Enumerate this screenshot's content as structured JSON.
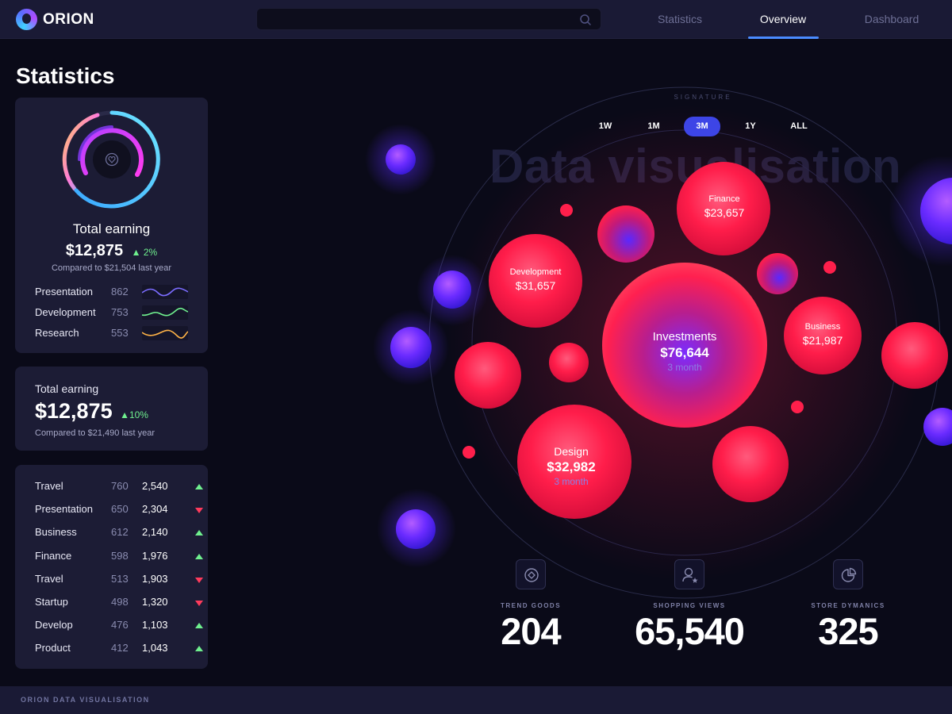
{
  "app": {
    "name": "ORION"
  },
  "nav": {
    "items": [
      "Statistics",
      "Overview",
      "Dashboard"
    ],
    "active": "Overview"
  },
  "page": {
    "title": "Statistics"
  },
  "earning_card": {
    "title": "Total earning",
    "value": "$12,875",
    "change": "2%",
    "compare": "Compared to $21,504 last year",
    "rows": [
      {
        "label": "Presentation",
        "value": "862",
        "color": "#7b6cff"
      },
      {
        "label": "Development",
        "value": "753",
        "color": "#6ff08e"
      },
      {
        "label": "Research",
        "value": "553",
        "color": "#ffb347"
      }
    ]
  },
  "earning_card_2": {
    "title": "Total earning",
    "value": "$12,875",
    "change": "10%",
    "compare": "Compared to $21,490 last year"
  },
  "table": {
    "rows": [
      {
        "label": "Travel",
        "v1": "760",
        "v2": "2,540",
        "trend": "up"
      },
      {
        "label": "Presentation",
        "v1": "650",
        "v2": "2,304",
        "trend": "down"
      },
      {
        "label": "Business",
        "v1": "612",
        "v2": "2,140",
        "trend": "up"
      },
      {
        "label": "Finance",
        "v1": "598",
        "v2": "1,976",
        "trend": "up"
      },
      {
        "label": "Travel",
        "v1": "513",
        "v2": "1,903",
        "trend": "down"
      },
      {
        "label": "Startup",
        "v1": "498",
        "v2": "1,320",
        "trend": "down"
      },
      {
        "label": "Develop",
        "v1": "476",
        "v2": "1,103",
        "trend": "up"
      },
      {
        "label": "Product",
        "v1": "412",
        "v2": "1,043",
        "trend": "up"
      }
    ]
  },
  "visualisation": {
    "ghost_title": "Data visualisation",
    "signature": "SIGNATURE",
    "ranges": [
      "1W",
      "1M",
      "3M",
      "1Y",
      "ALL"
    ],
    "active_range": "3M",
    "bubbles": [
      {
        "name": "Investments",
        "value": "$76,644",
        "sub": "3 month"
      },
      {
        "name": "Design",
        "value": "$32,982",
        "sub": "3 month"
      },
      {
        "name": "Development",
        "value": "$31,657",
        "sub": ""
      },
      {
        "name": "Finance",
        "value": "$23,657",
        "sub": ""
      },
      {
        "name": "Business",
        "value": "$21,987",
        "sub": ""
      }
    ]
  },
  "stats": [
    {
      "label": "TREND GOODS",
      "value": "204",
      "icon": "diamond-icon"
    },
    {
      "label": "SHOPPING VIEWS",
      "value": "65,540",
      "icon": "user-star-icon"
    },
    {
      "label": "STORE DYMANICS",
      "value": "325",
      "icon": "pie-chart-icon"
    }
  ],
  "footer": {
    "text": "ORION DATA VISUALISATION"
  },
  "colors": {
    "accent": "#3d45e6",
    "positive": "#6ff08e",
    "negative": "#ff3b5c",
    "bubble": "#ff1f4b",
    "background": "#0a0a18"
  }
}
